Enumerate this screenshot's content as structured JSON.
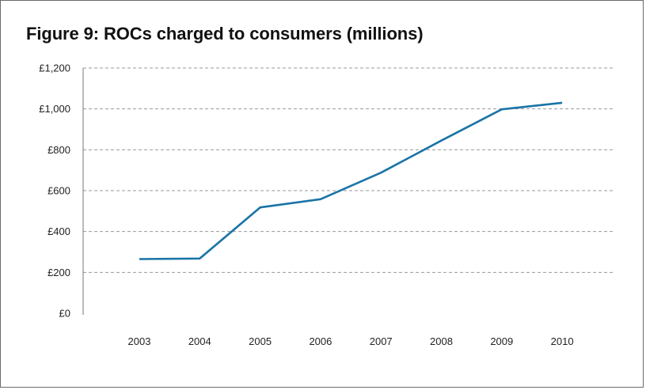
{
  "chart_data": {
    "type": "line",
    "title": "Figure 9: ROCs charged to consumers (millions)",
    "xlabel": "",
    "ylabel": "",
    "x": [
      "2003",
      "2004",
      "2005",
      "2006",
      "2007",
      "2008",
      "2009",
      "2010"
    ],
    "series": [
      {
        "values": [
          265,
          268,
          518,
          558,
          688,
          845,
          998,
          1030
        ]
      }
    ],
    "ylim": [
      0,
      1200
    ],
    "yticks": [
      0,
      200,
      400,
      600,
      800,
      1000,
      1200
    ],
    "ytick_labels": [
      "£0",
      "£200",
      "£400",
      "£600",
      "£800",
      "£1,000",
      "£1,200"
    ],
    "grid": "horizontal dashed",
    "legend": "none",
    "colors": {
      "line": "#1a74a6",
      "grid": "#9a9a9a",
      "axis": "#777777",
      "frame": "#6b6b6b"
    }
  }
}
